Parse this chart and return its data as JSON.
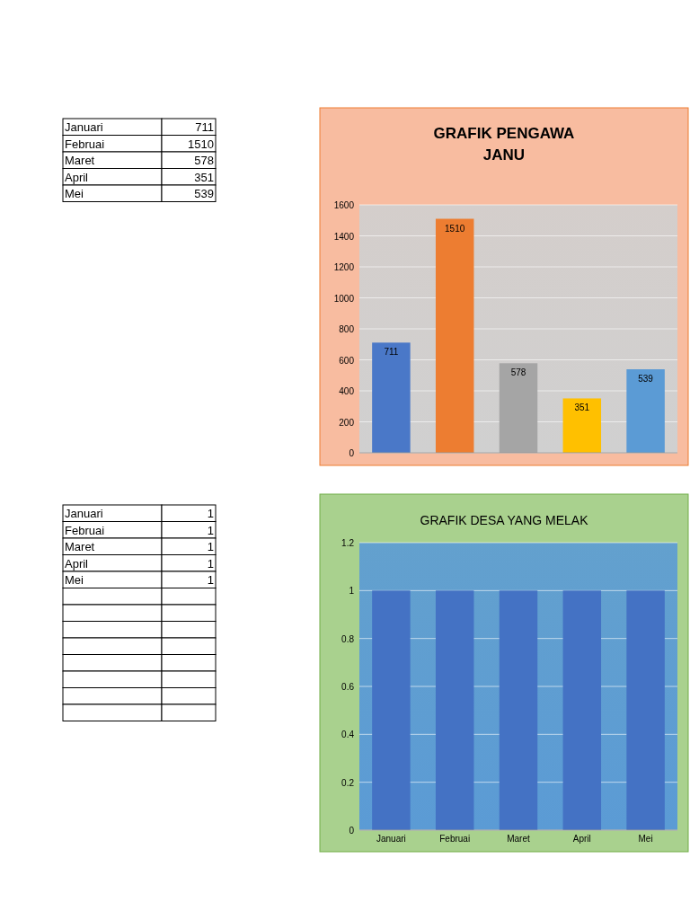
{
  "chart_data": [
    {
      "type": "other",
      "categories": [
        "Januari",
        "Februai",
        "Maret",
        "April",
        "Mei"
      ],
      "values": [
        711,
        1510,
        578,
        351,
        539
      ],
      "data_labels": true
    },
    {
      "type": "bar",
      "title": "GRAFIK PENGAWA",
      "subtitle": "JANU",
      "categories": [
        null,
        null,
        null,
        null,
        null
      ],
      "values": [
        711,
        1510,
        578,
        351,
        539
      ],
      "colors": [
        "#4a78c8",
        "#ed7d31",
        "#a5a5a5",
        "#ffc000",
        "#5b9bd5"
      ],
      "data_labels": true,
      "ylim": [
        0,
        1600
      ],
      "yticks": [
        0,
        200,
        400,
        600,
        800,
        1000,
        1200,
        1400,
        1600
      ],
      "grid": "y",
      "tick_labels": "y"
    },
    {
      "type": "other",
      "categories": [
        "Januari",
        "Februai",
        "Maret",
        "April",
        "Mei",
        null,
        null,
        null,
        null,
        null,
        null,
        null,
        null
      ],
      "values": [
        1,
        1,
        1,
        1,
        1,
        null,
        null,
        null,
        null,
        null,
        null,
        null,
        null
      ],
      "data_labels": true
    },
    {
      "type": "bar",
      "title": "GRAFIK DESA YANG MELAK",
      "categories": [
        "Januari",
        "Februai",
        "Maret",
        "April",
        "Mei"
      ],
      "values": [
        1,
        1,
        1,
        1,
        1
      ],
      "color": "#4472c4",
      "ylim": [
        0,
        1.2
      ],
      "yticks": [
        0,
        0.2,
        0.4,
        0.6,
        0.8,
        1,
        1.2
      ],
      "grid": "y"
    }
  ]
}
